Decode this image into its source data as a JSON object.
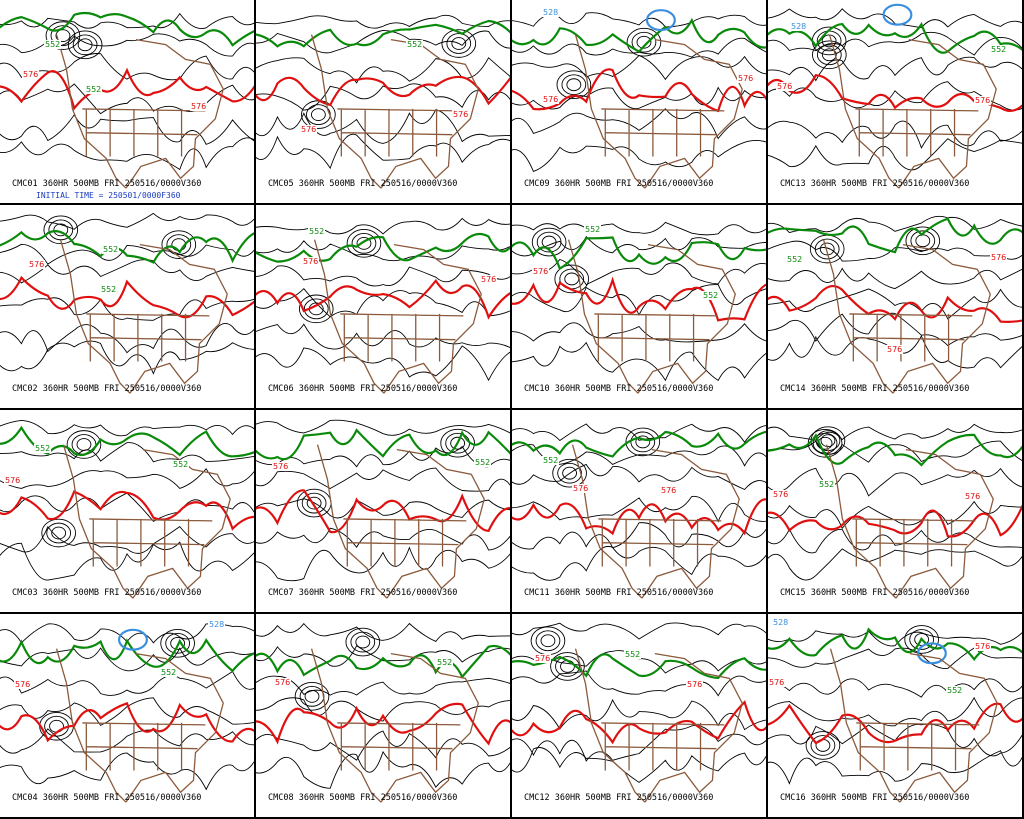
{
  "colors": {
    "height_contour": "#000000",
    "contour_576": "#e01010",
    "contour_552": "#0a8a0a",
    "contour_528": "#3a8ee0",
    "map_outline": "#8b5a3c",
    "initial_time_text": "#1a3bbf"
  },
  "contour_labels": {
    "red": "576",
    "green": "552",
    "blue": "528"
  },
  "initial_time": "INITIAL TIME = 250501/0000F360",
  "panels": [
    {
      "caption": "CMC01 360HR 500MB FRI 250516/0000V360",
      "labels": [
        {
          "c": "red",
          "t": "576"
        },
        {
          "c": "green",
          "t": "552"
        },
        {
          "c": "green",
          "t": "552"
        },
        {
          "c": "red",
          "t": "576"
        }
      ]
    },
    {
      "caption": "CMC05 360HR 500MB FRI 250516/0000V360",
      "labels": [
        {
          "c": "red",
          "t": "576"
        },
        {
          "c": "green",
          "t": "552"
        },
        {
          "c": "red",
          "t": "576"
        }
      ]
    },
    {
      "caption": "CMC09 360HR 500MB FRI 250516/0000V360",
      "labels": [
        {
          "c": "blue",
          "t": "528"
        },
        {
          "c": "red",
          "t": "576"
        },
        {
          "c": "green",
          "t": "552"
        },
        {
          "c": "red",
          "t": "576"
        }
      ]
    },
    {
      "caption": "CMC13 360HR 500MB FRI 250516/0000V360",
      "labels": [
        {
          "c": "blue",
          "t": "528"
        },
        {
          "c": "red",
          "t": "576"
        },
        {
          "c": "green",
          "t": "552"
        },
        {
          "c": "red",
          "t": "576"
        }
      ]
    },
    {
      "caption": "CMC02 360HR 500MB FRI 250516/0000V360",
      "labels": [
        {
          "c": "red",
          "t": "576"
        },
        {
          "c": "green",
          "t": "552"
        },
        {
          "c": "green",
          "t": "552"
        }
      ]
    },
    {
      "caption": "CMC06 360HR 500MB FRI 250516/0000V360",
      "labels": [
        {
          "c": "green",
          "t": "552"
        },
        {
          "c": "red",
          "t": "576"
        },
        {
          "c": "red",
          "t": "576"
        }
      ]
    },
    {
      "caption": "CMC10 360HR 500MB FRI 250516/0000V360",
      "labels": [
        {
          "c": "red",
          "t": "576"
        },
        {
          "c": "green",
          "t": "552"
        },
        {
          "c": "green",
          "t": "552"
        }
      ]
    },
    {
      "caption": "CMC14 360HR 500MB FRI 250516/0000V360",
      "labels": [
        {
          "c": "green",
          "t": "552"
        },
        {
          "c": "red",
          "t": "576"
        },
        {
          "c": "red",
          "t": "576"
        }
      ]
    },
    {
      "caption": "CMC03 360HR 500MB FRI 250516/0000V360",
      "labels": [
        {
          "c": "green",
          "t": "552"
        },
        {
          "c": "red",
          "t": "576"
        },
        {
          "c": "green",
          "t": "552"
        }
      ]
    },
    {
      "caption": "CMC07 360HR 500MB FRI 250516/0000V360",
      "labels": [
        {
          "c": "red",
          "t": "576"
        },
        {
          "c": "green",
          "t": "552"
        }
      ]
    },
    {
      "caption": "CMC11 360HR 500MB FRI 250516/0000V360",
      "labels": [
        {
          "c": "green",
          "t": "552"
        },
        {
          "c": "red",
          "t": "576"
        },
        {
          "c": "red",
          "t": "576"
        }
      ]
    },
    {
      "caption": "CMC15 360HR 500MB FRI 250516/0000V360",
      "labels": [
        {
          "c": "green",
          "t": "552"
        },
        {
          "c": "red",
          "t": "576"
        },
        {
          "c": "red",
          "t": "576"
        }
      ]
    },
    {
      "caption": "CMC04 360HR 500MB FRI 250516/0000V360",
      "labels": [
        {
          "c": "red",
          "t": "576"
        },
        {
          "c": "green",
          "t": "552"
        },
        {
          "c": "blue",
          "t": "528"
        }
      ]
    },
    {
      "caption": "CMC08 360HR 500MB FRI 250516/0000V360",
      "labels": [
        {
          "c": "red",
          "t": "576"
        },
        {
          "c": "green",
          "t": "552"
        }
      ]
    },
    {
      "caption": "CMC12 360HR 500MB FRI 250516/0000V360",
      "labels": [
        {
          "c": "red",
          "t": "576"
        },
        {
          "c": "green",
          "t": "552"
        },
        {
          "c": "red",
          "t": "576"
        }
      ]
    },
    {
      "caption": "CMC16 360HR 500MB FRI 250516/0000V360",
      "labels": [
        {
          "c": "blue",
          "t": "528"
        },
        {
          "c": "red",
          "t": "576"
        },
        {
          "c": "green",
          "t": "552"
        },
        {
          "c": "red",
          "t": "576"
        }
      ]
    }
  ]
}
